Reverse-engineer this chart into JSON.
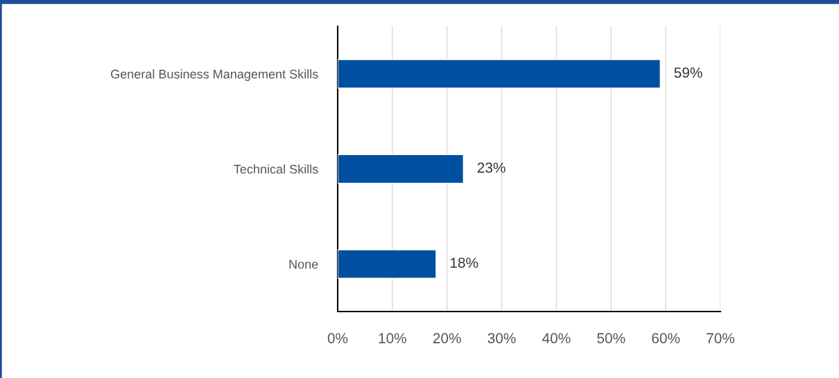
{
  "chart_data": {
    "type": "bar",
    "orientation": "horizontal",
    "categories": [
      "General Business Management Skills",
      "Technical Skills",
      "None"
    ],
    "values": [
      59,
      23,
      18
    ],
    "value_labels": [
      "59%",
      "23%",
      "18%"
    ],
    "color": "#0050a2",
    "xlim": [
      0,
      70
    ],
    "xticks": [
      {
        "value": 0,
        "label": "0%"
      },
      {
        "value": 10,
        "label": "10%"
      },
      {
        "value": 20,
        "label": "20%"
      },
      {
        "value": 30,
        "label": "30%"
      },
      {
        "value": 40,
        "label": "40%"
      },
      {
        "value": 50,
        "label": "50%"
      },
      {
        "value": 60,
        "label": "60%"
      },
      {
        "value": 70,
        "label": "70%"
      }
    ],
    "grid": "x",
    "legend": false
  }
}
